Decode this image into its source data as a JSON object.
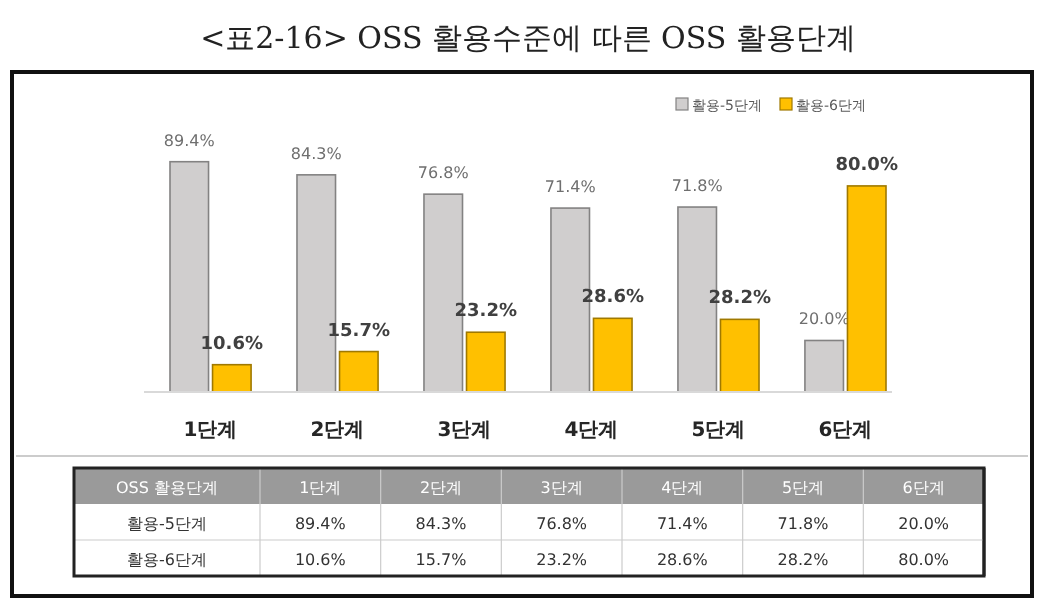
{
  "chart_data": {
    "type": "bar",
    "title": "<표2-16> OSS 활용수준에 따른 OSS 활용단계",
    "categories": [
      "1단계",
      "2단계",
      "3단계",
      "4단계",
      "5단계",
      "6단계"
    ],
    "series": [
      {
        "name": "활용-5단계",
        "color": "#d0cece",
        "values": [
          89.4,
          84.3,
          76.8,
          71.4,
          71.8,
          20.0
        ],
        "value_labels": [
          "89.4%",
          "84.3%",
          "76.8%",
          "71.4%",
          "71.8%",
          "20.0%"
        ]
      },
      {
        "name": "활용-6단계",
        "color": "#ffc000",
        "values": [
          10.6,
          15.7,
          23.2,
          28.6,
          28.2,
          80.0
        ],
        "value_labels": [
          "10.6%",
          "15.7%",
          "23.2%",
          "28.6%",
          "28.2%",
          "80.0%"
        ]
      }
    ],
    "legend": "top right",
    "annotations": [
      "OSS 활용단계"
    ]
  }
}
